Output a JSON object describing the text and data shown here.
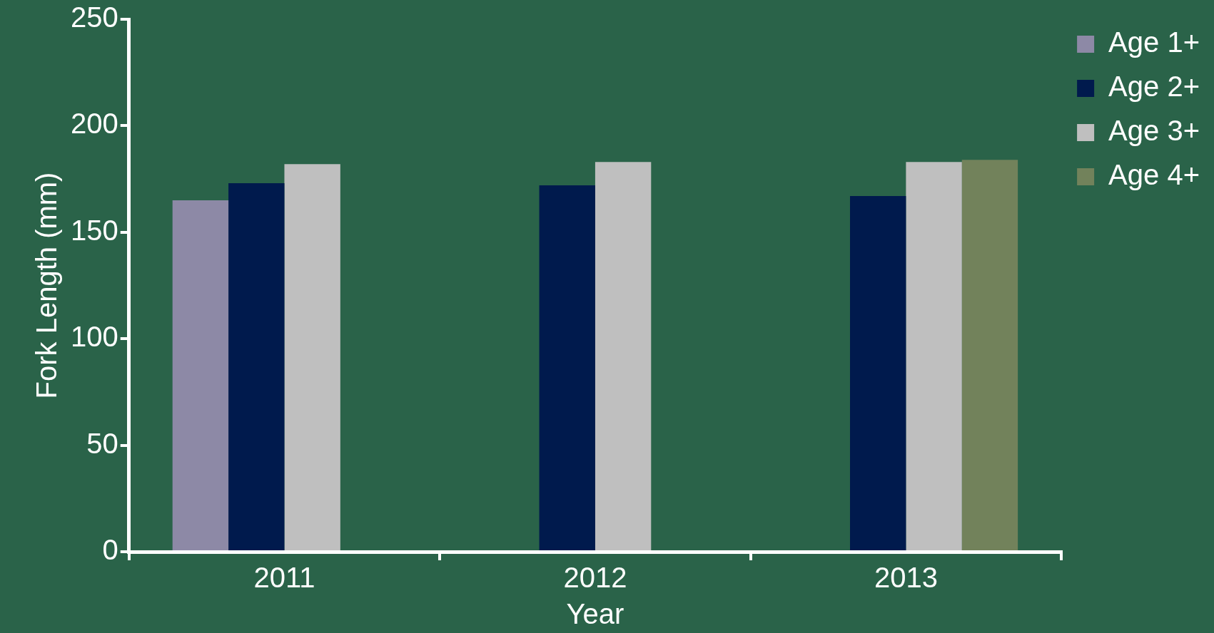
{
  "chart_data": {
    "type": "bar",
    "xlabel": "Year",
    "ylabel": "Fork Length (mm)",
    "categories": [
      "2011",
      "2012",
      "2013"
    ],
    "series": [
      {
        "name": "Age 1+",
        "color": "#8d89a6",
        "values": [
          165,
          null,
          null
        ]
      },
      {
        "name": "Age 2+",
        "color": "#001a4d",
        "values": [
          173,
          172,
          167
        ]
      },
      {
        "name": "Age 3+",
        "color": "#bfbfbf",
        "values": [
          182,
          183,
          183
        ]
      },
      {
        "name": "Age 4+",
        "color": "#72825b",
        "values": [
          null,
          null,
          184
        ]
      }
    ],
    "ylim": [
      0,
      250
    ],
    "yticks": [
      0,
      50,
      100,
      150,
      200,
      250
    ],
    "grid": false,
    "legend": "top right"
  }
}
